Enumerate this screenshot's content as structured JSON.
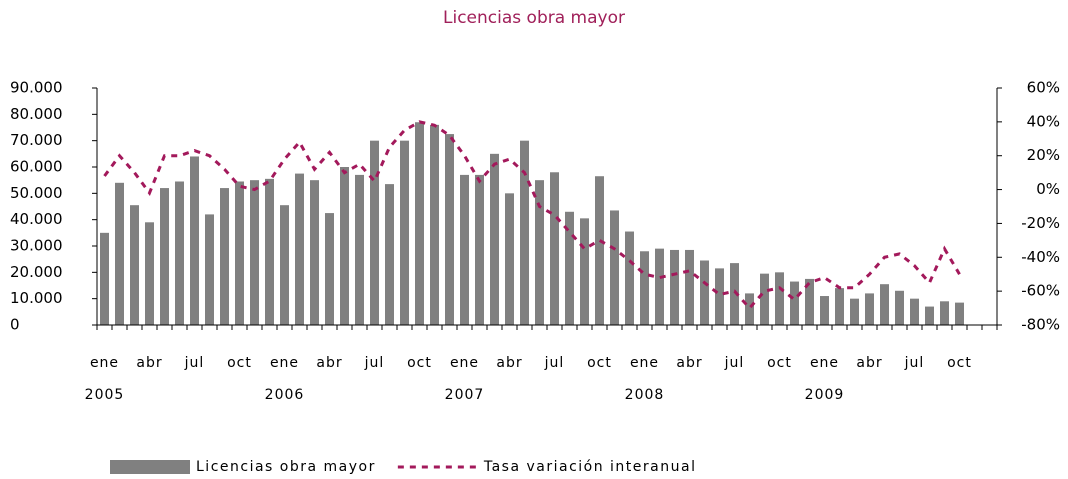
{
  "chart_data": {
    "type": "bar_line",
    "title": "Licencias obra mayor",
    "categories": [
      "ene",
      null,
      null,
      "abr",
      null,
      null,
      "jul",
      null,
      null,
      "oct",
      null,
      null,
      "ene",
      null,
      null,
      "abr",
      null,
      null,
      "jul",
      null,
      null,
      "oct",
      null,
      null,
      "ene",
      null,
      null,
      "abr",
      null,
      null,
      "jul",
      null,
      null,
      "oct",
      null,
      null,
      "ene",
      null,
      null,
      "abr",
      null,
      null,
      "jul",
      null,
      null,
      "oct",
      null,
      null,
      "ene",
      null,
      null,
      "abr",
      null,
      null,
      "jul",
      null,
      null,
      "oct",
      null,
      null
    ],
    "years": [
      "2005",
      "2006",
      "2007",
      "2008",
      "2009"
    ],
    "series": [
      {
        "name": "Licencias obra mayor",
        "kind": "bar",
        "color": "#808080",
        "values": [
          35000,
          54000,
          45500,
          39000,
          52000,
          54500,
          64000,
          42000,
          52000,
          54500,
          55000,
          55500,
          45500,
          57500,
          55000,
          42500,
          60000,
          57000,
          70000,
          53500,
          70000,
          77000,
          76000,
          72500,
          57000,
          57000,
          65000,
          50000,
          70000,
          55000,
          58000,
          43000,
          40500,
          56500,
          43500,
          35500,
          28000,
          29000,
          28500,
          28500,
          24500,
          21500,
          23500,
          12000,
          19500,
          20000,
          16500,
          17500,
          11000,
          14000,
          10000,
          12000,
          15500,
          13000,
          10000,
          7000,
          9000,
          8500,
          null,
          null
        ]
      },
      {
        "name": "Tasa variación interanual",
        "kind": "line",
        "axis": "y2",
        "color": "#a3195b",
        "values": [
          8,
          20,
          10,
          -2,
          20,
          20,
          23,
          20,
          12,
          2,
          0,
          5,
          18,
          28,
          12,
          22,
          10,
          15,
          5,
          25,
          35,
          40,
          38,
          32,
          20,
          5,
          15,
          18,
          10,
          -10,
          -15,
          -25,
          -35,
          -30,
          -35,
          -42,
          -50,
          -52,
          -50,
          -48,
          -55,
          -62,
          -60,
          -70,
          -60,
          -58,
          -65,
          -55,
          -52,
          -58,
          -58,
          -50,
          -40,
          -38,
          -45,
          -55,
          -35,
          -50,
          null,
          null
        ]
      }
    ],
    "ylim": [
      0,
      90000
    ],
    "yticks": [
      0,
      {
        "value": 10000,
        "label": "10.000"
      },
      {
        "value": 20000,
        "label": "20.000"
      },
      {
        "value": 30000,
        "label": "30.000"
      },
      {
        "value": 40000,
        "label": "40.000"
      },
      {
        "value": 50000,
        "label": "50.000"
      },
      {
        "value": 60000,
        "label": "60.000"
      },
      {
        "value": 70000,
        "label": "70.000"
      },
      {
        "value": 80000,
        "label": "80.000"
      },
      {
        "value": 90000,
        "label": "90.000"
      }
    ],
    "y2lim": [
      -80,
      60
    ],
    "y2ticks": [
      {
        "value": -80,
        "label": "-80%"
      },
      {
        "value": -60,
        "label": "-60%"
      },
      {
        "value": -40,
        "label": "-40%"
      },
      {
        "value": -20,
        "label": "-20%"
      },
      {
        "value": 0,
        "label": "0%"
      },
      {
        "value": 20,
        "label": "20%"
      },
      {
        "value": 40,
        "label": "40%"
      },
      {
        "value": 60,
        "label": "60%"
      }
    ],
    "legend": "bottom"
  }
}
